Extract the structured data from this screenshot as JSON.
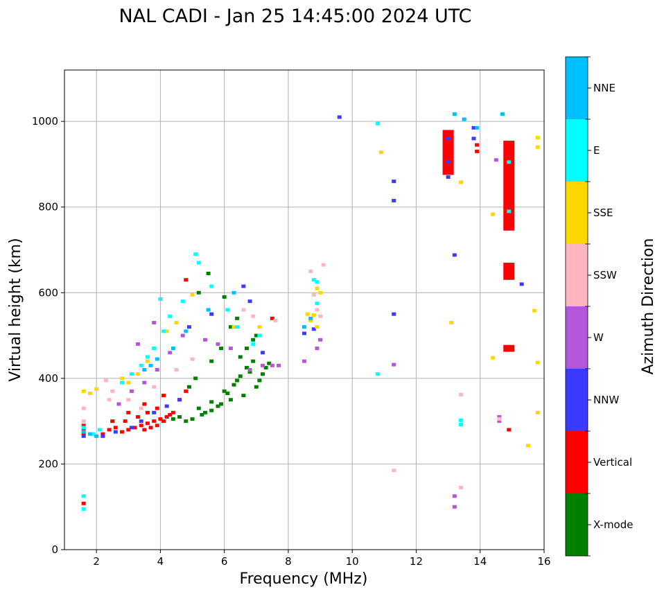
{
  "chart_data": {
    "type": "scatter",
    "title": "NAL CADI - Jan 25 14:45:00 2024 UTC",
    "xlabel": "Frequency (MHz)",
    "ylabel": "Virtual height (km)",
    "xlim": [
      1,
      16
    ],
    "ylim": [
      0,
      1120
    ],
    "xticks": [
      2,
      4,
      6,
      8,
      10,
      12,
      14,
      16
    ],
    "yticks": [
      0,
      200,
      400,
      600,
      800,
      1000
    ],
    "grid": true,
    "colorbar": {
      "label": "Azimuth Direction",
      "categories": [
        {
          "name": "X-mode",
          "color": "#008000"
        },
        {
          "name": "Vertical",
          "color": "#ff0000"
        },
        {
          "name": "NNW",
          "color": "#3b3bff"
        },
        {
          "name": "W",
          "color": "#b556d8"
        },
        {
          "name": "SSW",
          "color": "#ffb6c1"
        },
        {
          "name": "SSE",
          "color": "#ffd700"
        },
        {
          "name": "E",
          "color": "#00ffff"
        },
        {
          "name": "NNE",
          "color": "#00bfff"
        }
      ]
    },
    "series": [
      {
        "name": "X-mode",
        "color": "#008000",
        "points": [
          [
            4.6,
            310
          ],
          [
            5.0,
            305
          ],
          [
            5.3,
            315
          ],
          [
            5.6,
            325
          ],
          [
            5.9,
            340
          ],
          [
            6.1,
            365
          ],
          [
            6.3,
            385
          ],
          [
            6.5,
            405
          ],
          [
            6.7,
            425
          ],
          [
            6.9,
            440
          ],
          [
            5.2,
            330
          ],
          [
            5.6,
            345
          ],
          [
            6.0,
            370
          ],
          [
            6.4,
            395
          ],
          [
            6.8,
            415
          ],
          [
            7.1,
            395
          ],
          [
            7.2,
            410
          ],
          [
            7.3,
            425
          ],
          [
            7.4,
            435
          ],
          [
            7.0,
            380
          ],
          [
            6.6,
            360
          ],
          [
            6.2,
            350
          ],
          [
            5.8,
            335
          ],
          [
            5.4,
            320
          ],
          [
            4.8,
            300
          ],
          [
            6.7,
            470
          ],
          [
            6.9,
            490
          ],
          [
            6.5,
            450
          ],
          [
            7.0,
            500
          ],
          [
            6.0,
            590
          ],
          [
            5.5,
            645
          ],
          [
            5.2,
            600
          ],
          [
            5.9,
            470
          ],
          [
            5.6,
            440
          ],
          [
            5.1,
            400
          ],
          [
            4.9,
            380
          ],
          [
            4.2,
            310
          ],
          [
            4.4,
            305
          ],
          [
            6.2,
            520
          ],
          [
            6.4,
            540
          ]
        ]
      },
      {
        "name": "Vertical",
        "color": "#ff0000",
        "points": [
          [
            1.6,
            270
          ],
          [
            1.6,
            280
          ],
          [
            1.6,
            290
          ],
          [
            2.2,
            270
          ],
          [
            2.4,
            280
          ],
          [
            2.6,
            285
          ],
          [
            2.8,
            275
          ],
          [
            3.0,
            280
          ],
          [
            3.2,
            285
          ],
          [
            3.4,
            290
          ],
          [
            3.6,
            295
          ],
          [
            3.8,
            300
          ],
          [
            4.0,
            305
          ],
          [
            4.2,
            310
          ],
          [
            4.4,
            320
          ],
          [
            3.5,
            280
          ],
          [
            3.7,
            285
          ],
          [
            3.9,
            290
          ],
          [
            4.1,
            300
          ],
          [
            4.3,
            315
          ],
          [
            2.5,
            300
          ],
          [
            2.9,
            300
          ],
          [
            3.3,
            310
          ],
          [
            3.6,
            320
          ],
          [
            3.9,
            330
          ],
          [
            4.6,
            350
          ],
          [
            4.8,
            370
          ],
          [
            4.1,
            360
          ],
          [
            3.5,
            340
          ],
          [
            3.0,
            320
          ],
          [
            14.9,
            280
          ],
          [
            13.0,
            895
          ],
          [
            13.0,
            935
          ],
          [
            13.0,
            950
          ],
          [
            13.9,
            930
          ],
          [
            13.9,
            945
          ],
          [
            4.8,
            630
          ],
          [
            7.5,
            540
          ],
          [
            1.6,
            108
          ]
        ]
      },
      {
        "name": "Vertical-band",
        "color": "#ff0000",
        "bands": [
          [
            14.9,
            745,
            955
          ],
          [
            14.9,
            630,
            670
          ],
          [
            14.9,
            462,
            478
          ],
          [
            13.0,
            875,
            980
          ]
        ]
      },
      {
        "name": "NNW",
        "color": "#3b3bff",
        "points": [
          [
            1.6,
            265
          ],
          [
            2.2,
            265
          ],
          [
            2.6,
            275
          ],
          [
            3.1,
            285
          ],
          [
            3.4,
            300
          ],
          [
            3.8,
            320
          ],
          [
            4.2,
            335
          ],
          [
            4.6,
            350
          ],
          [
            6.6,
            615
          ],
          [
            13.0,
            870
          ],
          [
            13.0,
            905
          ],
          [
            13.0,
            960
          ],
          [
            13.8,
            960
          ],
          [
            13.8,
            985
          ],
          [
            11.3,
            550
          ],
          [
            11.3,
            815
          ],
          [
            11.3,
            860
          ],
          [
            9.6,
            1010
          ],
          [
            15.3,
            620
          ],
          [
            13.2,
            688
          ],
          [
            8.5,
            505
          ],
          [
            8.8,
            515
          ],
          [
            6.8,
            580
          ],
          [
            7.2,
            460
          ],
          [
            4.9,
            520
          ],
          [
            5.6,
            550
          ]
        ]
      },
      {
        "name": "W",
        "color": "#b556d8",
        "points": [
          [
            8.5,
            440
          ],
          [
            8.9,
            470
          ],
          [
            9.0,
            490
          ],
          [
            7.2,
            430
          ],
          [
            7.5,
            430
          ],
          [
            7.7,
            430
          ],
          [
            6.8,
            420
          ],
          [
            6.2,
            470
          ],
          [
            5.8,
            480
          ],
          [
            5.4,
            490
          ],
          [
            4.7,
            500
          ],
          [
            4.3,
            460
          ],
          [
            3.9,
            420
          ],
          [
            3.5,
            390
          ],
          [
            3.1,
            370
          ],
          [
            2.7,
            340
          ],
          [
            14.6,
            300
          ],
          [
            14.6,
            310
          ],
          [
            13.2,
            100
          ],
          [
            13.2,
            125
          ],
          [
            14.5,
            910
          ],
          [
            11.3,
            432
          ],
          [
            3.8,
            530
          ],
          [
            3.3,
            480
          ]
        ]
      },
      {
        "name": "SSW",
        "color": "#ffb6c1",
        "points": [
          [
            1.6,
            300
          ],
          [
            1.6,
            330
          ],
          [
            2.4,
            350
          ],
          [
            2.5,
            370
          ],
          [
            2.3,
            395
          ],
          [
            3.0,
            350
          ],
          [
            3.4,
            330
          ],
          [
            3.8,
            380
          ],
          [
            4.5,
            420
          ],
          [
            5.0,
            445
          ],
          [
            8.8,
            595
          ],
          [
            8.9,
            560
          ],
          [
            9.0,
            545
          ],
          [
            8.7,
            650
          ],
          [
            9.1,
            665
          ],
          [
            13.4,
            362
          ],
          [
            13.4,
            145
          ],
          [
            11.3,
            185
          ],
          [
            14.6,
            305
          ],
          [
            6.6,
            560
          ],
          [
            6.9,
            545
          ],
          [
            7.6,
            535
          ]
        ]
      },
      {
        "name": "SSE",
        "color": "#ffd700",
        "points": [
          [
            1.6,
            370
          ],
          [
            1.8,
            365
          ],
          [
            2.0,
            375
          ],
          [
            2.8,
            400
          ],
          [
            3.0,
            390
          ],
          [
            3.3,
            410
          ],
          [
            3.6,
            440
          ],
          [
            3.8,
            470
          ],
          [
            4.2,
            510
          ],
          [
            4.5,
            530
          ],
          [
            8.6,
            550
          ],
          [
            8.7,
            535
          ],
          [
            8.9,
            520
          ],
          [
            9.0,
            600
          ],
          [
            8.9,
            610
          ],
          [
            8.8,
            548
          ],
          [
            13.1,
            530
          ],
          [
            13.4,
            858
          ],
          [
            14.4,
            448
          ],
          [
            14.4,
            783
          ],
          [
            15.5,
            243
          ],
          [
            15.7,
            558
          ],
          [
            15.8,
            320
          ],
          [
            15.8,
            437
          ],
          [
            15.8,
            940
          ],
          [
            15.8,
            962
          ],
          [
            10.9,
            928
          ],
          [
            7.1,
            520
          ],
          [
            6.3,
            520
          ],
          [
            5.0,
            595
          ]
        ]
      },
      {
        "name": "E",
        "color": "#00ffff",
        "points": [
          [
            1.6,
            95
          ],
          [
            1.6,
            125
          ],
          [
            1.6,
            285
          ],
          [
            1.9,
            270
          ],
          [
            2.1,
            280
          ],
          [
            2.8,
            390
          ],
          [
            3.1,
            410
          ],
          [
            3.4,
            430
          ],
          [
            3.6,
            450
          ],
          [
            3.8,
            470
          ],
          [
            4.1,
            510
          ],
          [
            4.3,
            545
          ],
          [
            4.0,
            585
          ],
          [
            4.7,
            580
          ],
          [
            5.1,
            690
          ],
          [
            5.2,
            670
          ],
          [
            5.6,
            615
          ],
          [
            6.1,
            560
          ],
          [
            6.4,
            520
          ],
          [
            6.9,
            480
          ],
          [
            7.1,
            500
          ],
          [
            8.8,
            630
          ],
          [
            8.9,
            575
          ],
          [
            8.9,
            625
          ],
          [
            13.4,
            292
          ],
          [
            13.4,
            302
          ],
          [
            10.8,
            410
          ],
          [
            10.8,
            995
          ],
          [
            14.9,
            905
          ],
          [
            14.9,
            790
          ]
        ]
      },
      {
        "name": "NNE",
        "color": "#00bfff",
        "points": [
          [
            1.6,
            275
          ],
          [
            1.8,
            270
          ],
          [
            2.0,
            265
          ],
          [
            3.5,
            420
          ],
          [
            3.7,
            430
          ],
          [
            3.9,
            445
          ],
          [
            4.4,
            470
          ],
          [
            4.8,
            510
          ],
          [
            5.5,
            560
          ],
          [
            6.3,
            600
          ],
          [
            8.5,
            520
          ],
          [
            8.7,
            540
          ],
          [
            13.5,
            1005
          ],
          [
            13.9,
            985
          ],
          [
            14.7,
            1017
          ],
          [
            13.2,
            1017
          ]
        ]
      }
    ]
  }
}
